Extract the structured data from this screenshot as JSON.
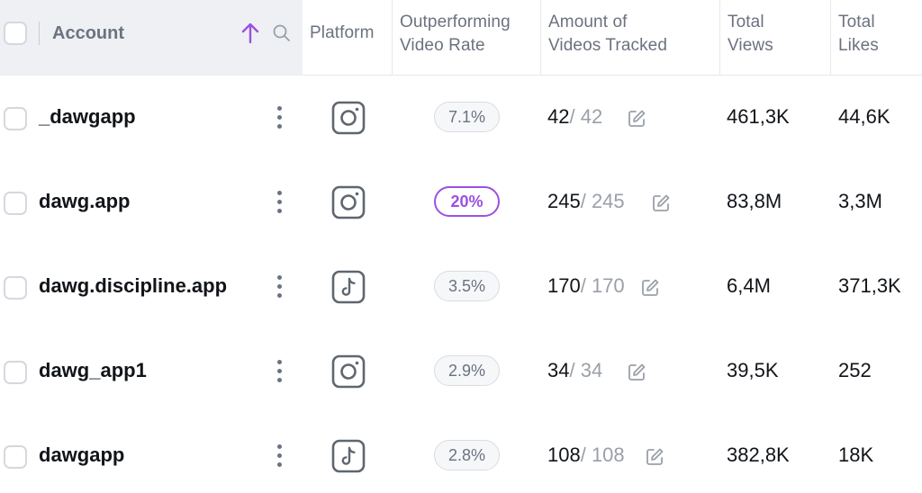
{
  "header": {
    "account": "Account",
    "platform": "Platform",
    "rate_line1": "Outperforming",
    "rate_line2": "Video Rate",
    "tracked_line1": "Amount of",
    "tracked_line2": "Videos Tracked",
    "views_line1": "Total",
    "views_line2": "Views",
    "likes_line1": "Total",
    "likes_line2": "Likes"
  },
  "accent_color": "#9b51e0",
  "rows": [
    {
      "name": "_dawgapp",
      "platform": "instagram-icon",
      "rate": "7.1%",
      "tracked": "42",
      "tracked_total": "/ 42",
      "views": "461,3K",
      "likes": "44,6K"
    },
    {
      "name": "dawg.app",
      "platform": "instagram-icon",
      "rate": "20%",
      "tracked": "245",
      "tracked_total": "/ 245",
      "views": "83,8M",
      "likes": "3,3M"
    },
    {
      "name": "dawg.discipline.app",
      "platform": "tiktok-icon",
      "rate": "3.5%",
      "tracked": "170",
      "tracked_total": "/ 170",
      "views": "6,4M",
      "likes": "371,3K"
    },
    {
      "name": "dawg_app1",
      "platform": "instagram-icon",
      "rate": "2.9%",
      "tracked": "34",
      "tracked_total": "/ 34",
      "views": "39,5K",
      "likes": "252"
    },
    {
      "name": "dawgapp",
      "platform": "tiktok-icon",
      "rate": "2.8%",
      "tracked": "108",
      "tracked_total": "/ 108",
      "views": "382,8K",
      "likes": "18K"
    }
  ]
}
